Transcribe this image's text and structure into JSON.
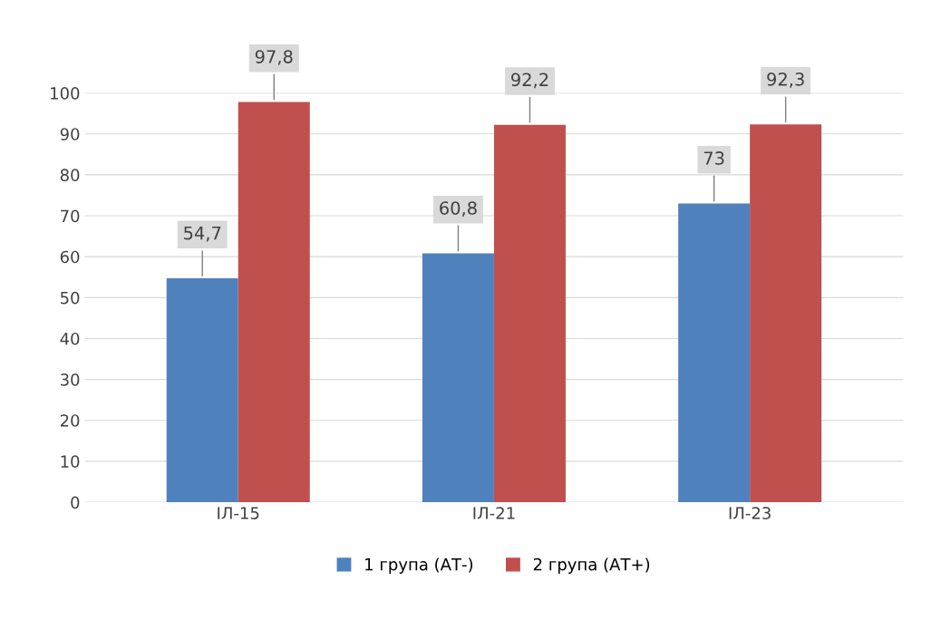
{
  "chart_data": {
    "type": "bar",
    "categories": [
      "ІЛ-15",
      "ІЛ-21",
      "ІЛ-23"
    ],
    "series": [
      {
        "name": "1 група (АТ-)",
        "color": "#4f81bd",
        "values": [
          54.7,
          60.8,
          73
        ],
        "value_labels": [
          "54,7",
          "60,8",
          "73"
        ]
      },
      {
        "name": "2 група (АТ+)",
        "color": "#c0504d",
        "values": [
          97.8,
          92.2,
          92.3
        ],
        "value_labels": [
          "97,8",
          "92,2",
          "92,3"
        ]
      }
    ],
    "ylim": [
      0,
      100
    ],
    "yticks": [
      0,
      10,
      20,
      30,
      40,
      50,
      60,
      70,
      80,
      90,
      100
    ],
    "grid": "y",
    "legend": "bottom"
  }
}
